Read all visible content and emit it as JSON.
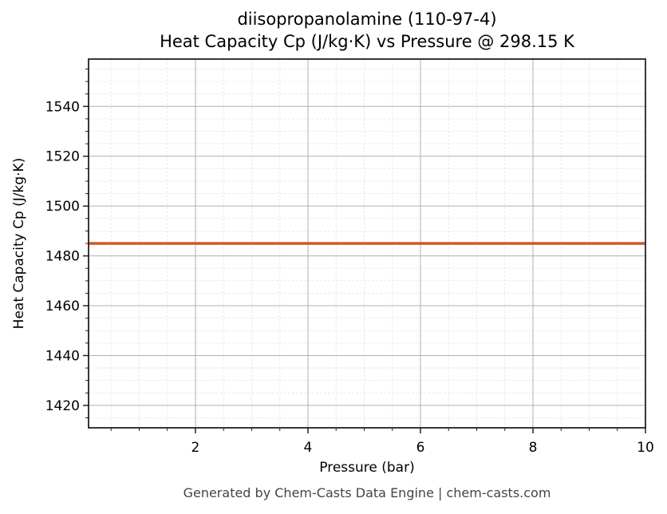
{
  "chart_data": {
    "type": "line",
    "title": "diisopropanolamine (110-97-4)",
    "subtitle": "Heat Capacity Cp (J/kg·K) vs Pressure @ 298.15 K",
    "xlabel": "Pressure (bar)",
    "ylabel": "Heat Capacity Cp (J/kg·K)",
    "xlim": [
      0.1,
      10
    ],
    "ylim": [
      1411,
      1559
    ],
    "x_ticks": [
      "2",
      "4",
      "6",
      "8",
      "10"
    ],
    "y_ticks": [
      "1420",
      "1440",
      "1460",
      "1480",
      "1500",
      "1520",
      "1540"
    ],
    "grid": true,
    "series": [
      {
        "name": "Cp",
        "color": "#d4562a",
        "x": [
          0.1,
          10
        ],
        "values": [
          1485,
          1485
        ]
      }
    ]
  },
  "footer": "Generated by Chem-Casts Data Engine | chem-casts.com"
}
